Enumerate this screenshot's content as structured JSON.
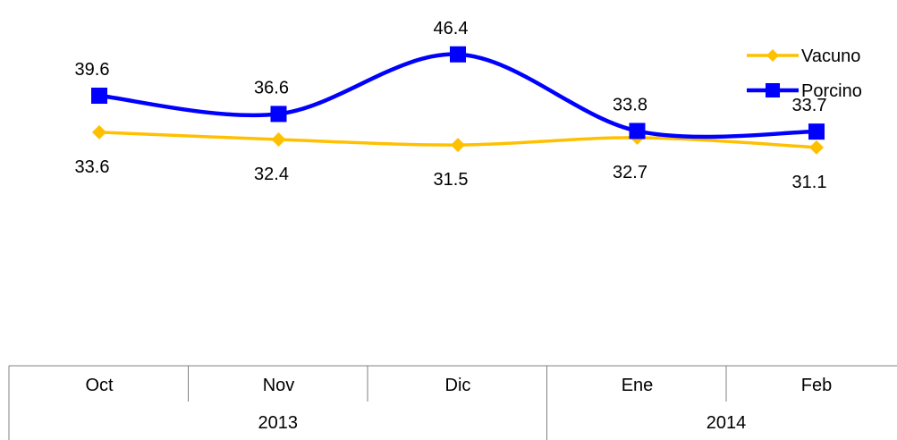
{
  "chart_data": {
    "type": "line",
    "categories": [
      "Oct",
      "Nov",
      "Dic",
      "Ene",
      "Feb"
    ],
    "year_groups": [
      {
        "label": "2013",
        "span": [
          0,
          2
        ]
      },
      {
        "label": "2014",
        "span": [
          3,
          4
        ]
      }
    ],
    "series": [
      {
        "name": "Vacuno",
        "values": [
          33.6,
          32.4,
          31.5,
          32.7,
          31.1
        ],
        "color": "#FFC000",
        "marker": "diamond",
        "label_position": "below"
      },
      {
        "name": "Porcino",
        "values": [
          39.6,
          36.6,
          46.4,
          33.8,
          33.7
        ],
        "color": "#0000FF",
        "marker": "square",
        "label_position": "above"
      }
    ],
    "title": "",
    "xlabel": "",
    "ylabel": "",
    "ylim": [
      25,
      48
    ],
    "grid": false,
    "legend": "top-right",
    "smooth": true,
    "data_labels": true
  }
}
